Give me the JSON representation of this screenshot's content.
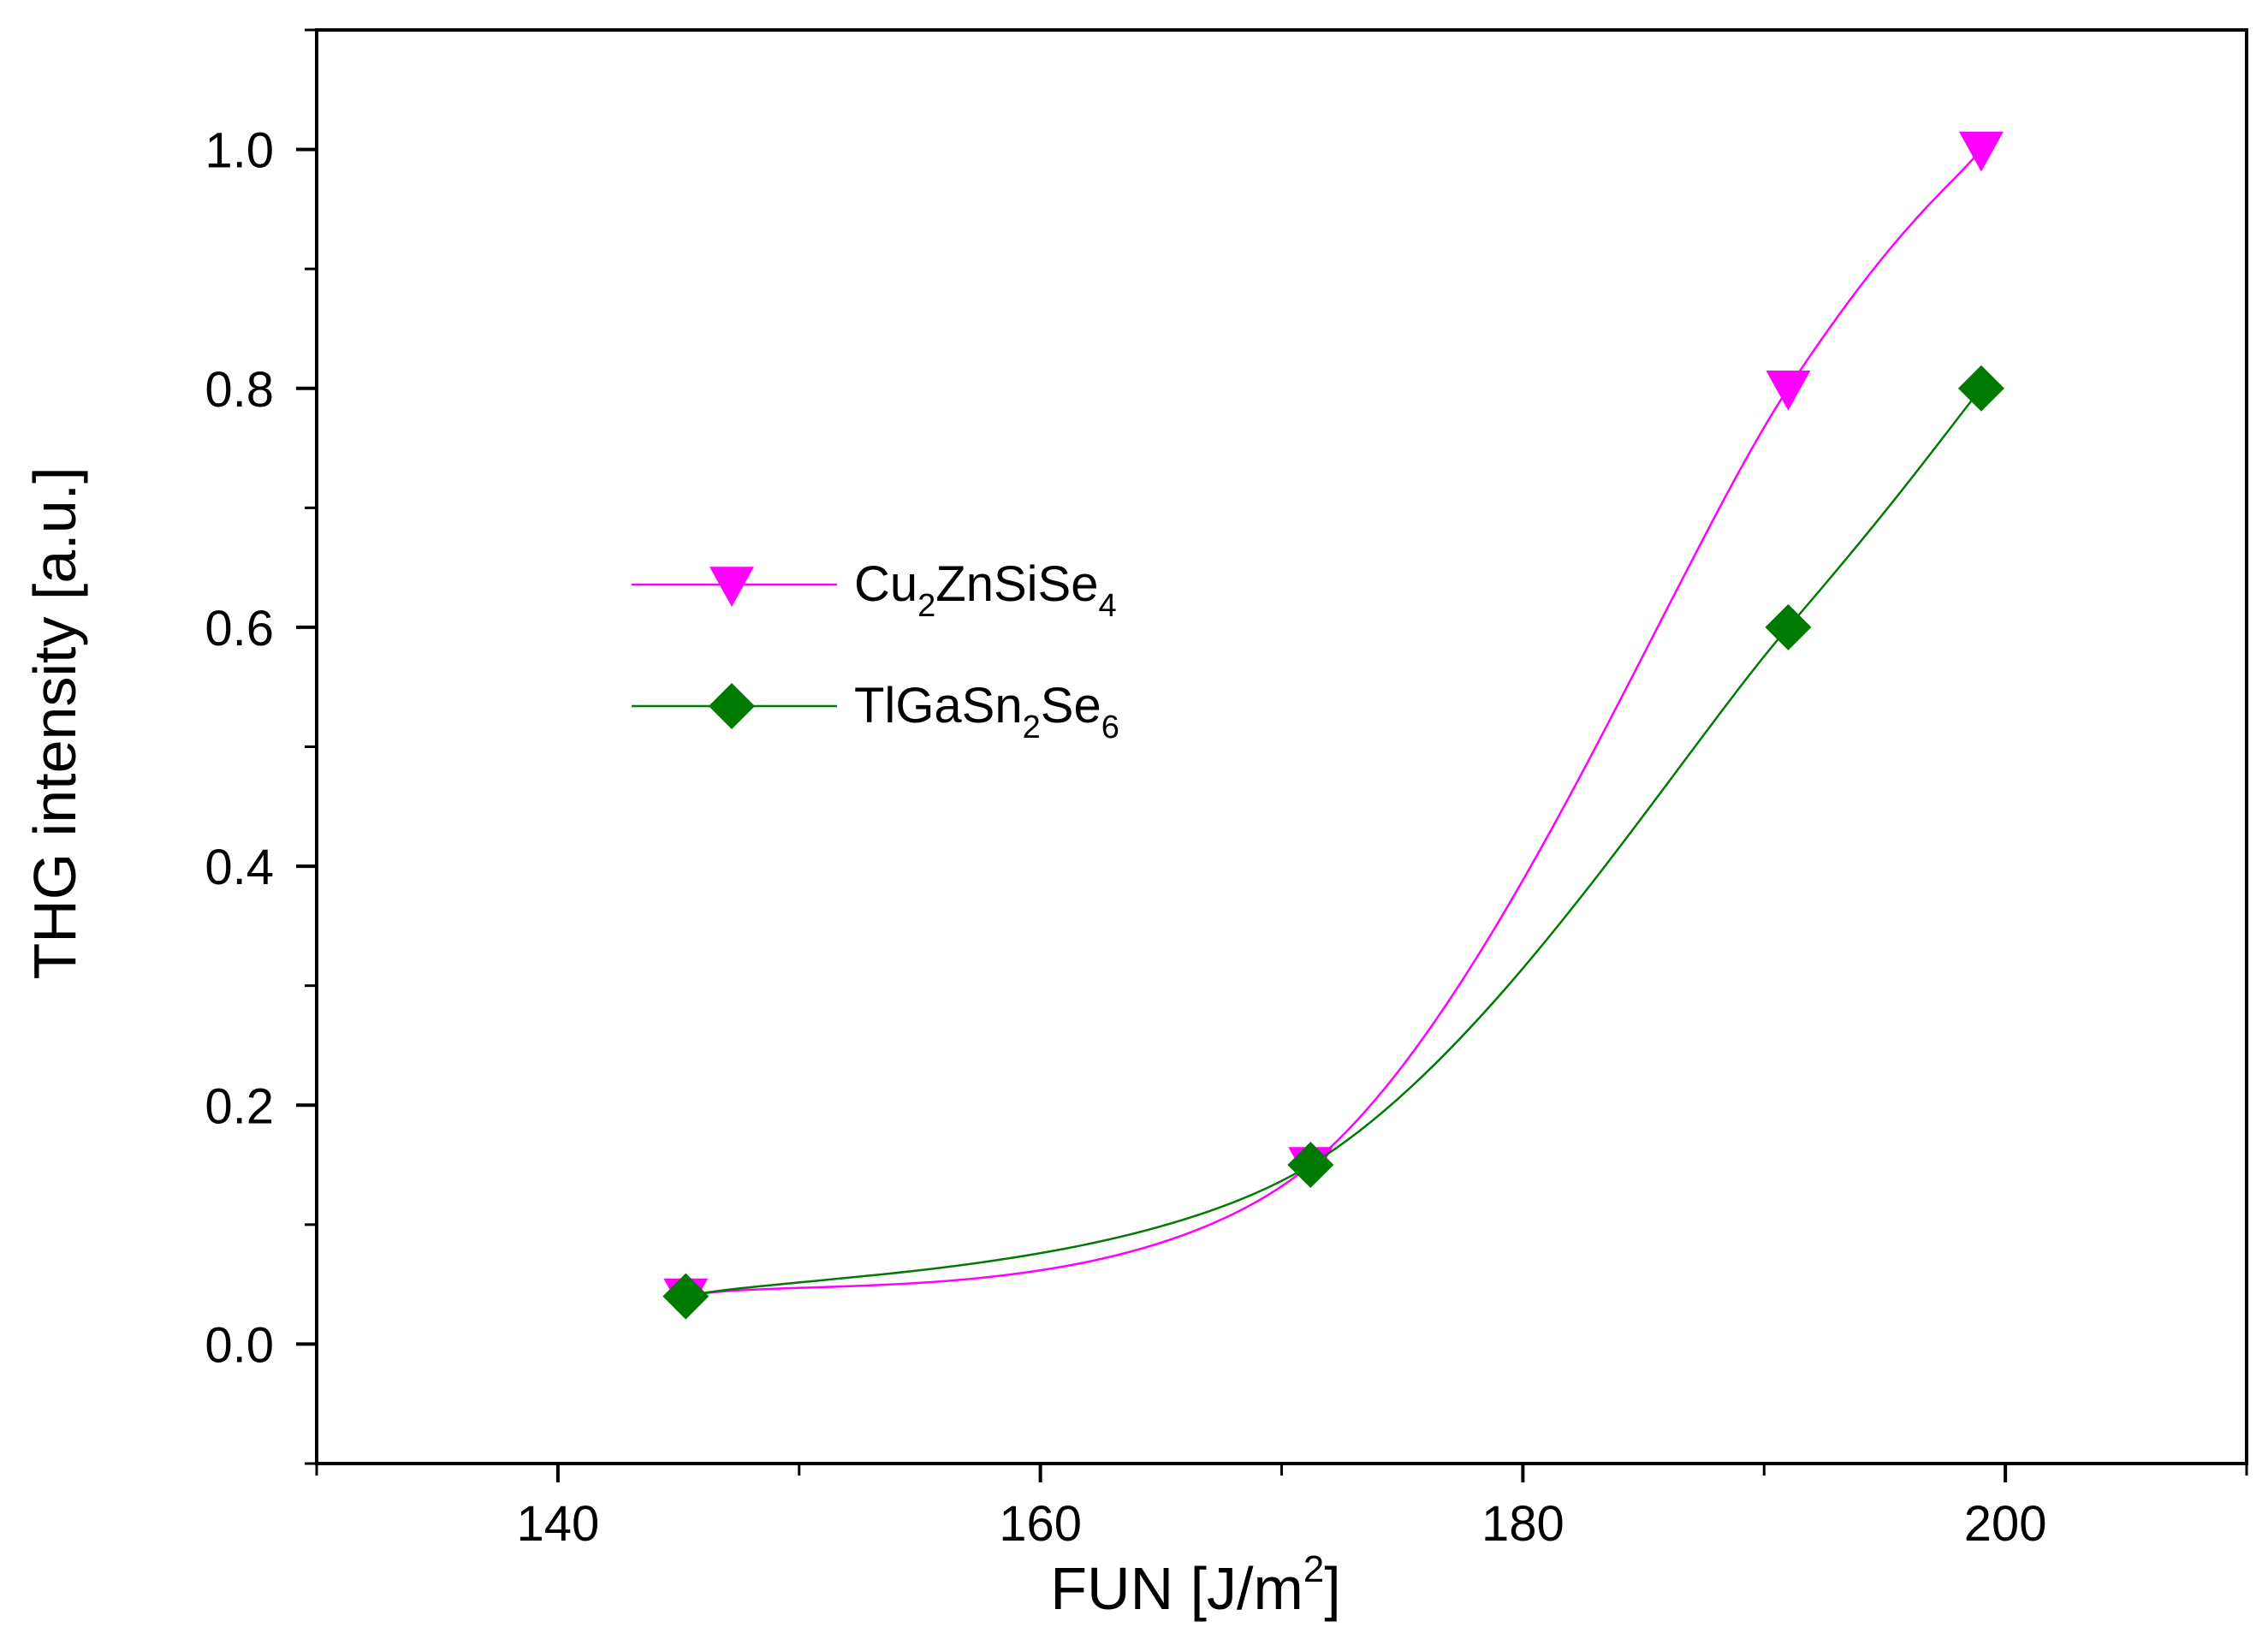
{
  "chart_data": {
    "type": "line",
    "title": "",
    "xlabel": {
      "base": "FUN [J/m",
      "sup": "2",
      "tail": "]"
    },
    "ylabel": "THG intensity [a.u.]",
    "xlim": [
      130,
      210
    ],
    "ylim": [
      -0.1,
      1.1
    ],
    "xticks": [
      140,
      160,
      180,
      200
    ],
    "xtick_labels": [
      "140",
      "160",
      "180",
      "200"
    ],
    "xminor_ticks": [
      130,
      150,
      170,
      190,
      210
    ],
    "yticks": [
      0.0,
      0.2,
      0.4,
      0.6,
      0.8,
      1.0
    ],
    "ytick_labels": [
      "0.0",
      "0.2",
      "0.4",
      "0.6",
      "0.8",
      "1.0"
    ],
    "yminor_ticks": [
      -0.1,
      0.1,
      0.3,
      0.5,
      0.7,
      0.9,
      1.1
    ],
    "grid": false,
    "legend_position": "center-left",
    "series": [
      {
        "name": "Cu2ZnSiSe4",
        "label_parts": [
          {
            "t": "Cu",
            "s": "n"
          },
          {
            "t": "2",
            "s": "sub"
          },
          {
            "t": "ZnSiSe",
            "s": "n"
          },
          {
            "t": "4",
            "s": "sub"
          }
        ],
        "color": "#ff00ff",
        "marker": "triangle-down",
        "x": [
          145.3,
          171.2,
          191.0,
          199.0
        ],
        "y": [
          0.04,
          0.15,
          0.8,
          1.0
        ]
      },
      {
        "name": "TlGaSn2Se6",
        "label_parts": [
          {
            "t": "TlGaSn",
            "s": "n"
          },
          {
            "t": "2",
            "s": "sub"
          },
          {
            "t": "Se",
            "s": "n"
          },
          {
            "t": "6",
            "s": "sub"
          }
        ],
        "color": "#007a00",
        "marker": "diamond",
        "x": [
          145.3,
          171.2,
          191.0,
          199.0
        ],
        "y": [
          0.04,
          0.15,
          0.6,
          0.8
        ]
      }
    ]
  }
}
